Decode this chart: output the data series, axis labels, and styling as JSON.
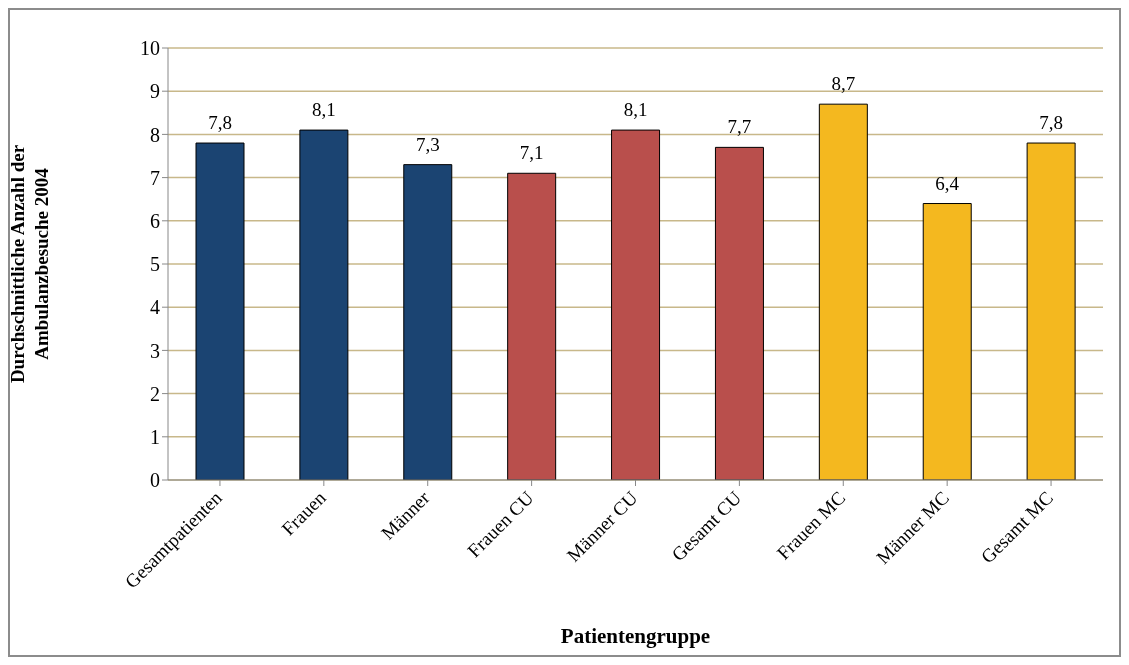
{
  "chart_data": {
    "type": "bar",
    "xlabel": "Patientengruppe",
    "ylabel": "Durchschnittliche Anzahl der\nAmbulanzbesuche 2004",
    "categories": [
      "Gesamtpatienten",
      "Frauen",
      "Männer",
      "Frauen CU",
      "Männer CU",
      "Gesamt CU",
      "Frauen MC",
      "Männer MC",
      "Gesamt MC"
    ],
    "values": [
      7.8,
      8.1,
      7.3,
      7.1,
      8.1,
      7.7,
      8.7,
      6.4,
      7.8
    ],
    "colors": [
      "#1b4472",
      "#1b4472",
      "#1b4472",
      "#b94f4c",
      "#b94f4c",
      "#b94f4c",
      "#f4b81f",
      "#f4b81f",
      "#f4b81f"
    ],
    "value_labels": [
      "7,8",
      "8,1",
      "7,3",
      "7,1",
      "8,1",
      "7,7",
      "8,7",
      "6,4",
      "7,8"
    ],
    "ylim": [
      0,
      10
    ],
    "yticks": [
      0,
      1,
      2,
      3,
      4,
      5,
      6,
      7,
      8,
      9,
      10
    ],
    "grid": "y",
    "legend": false
  }
}
